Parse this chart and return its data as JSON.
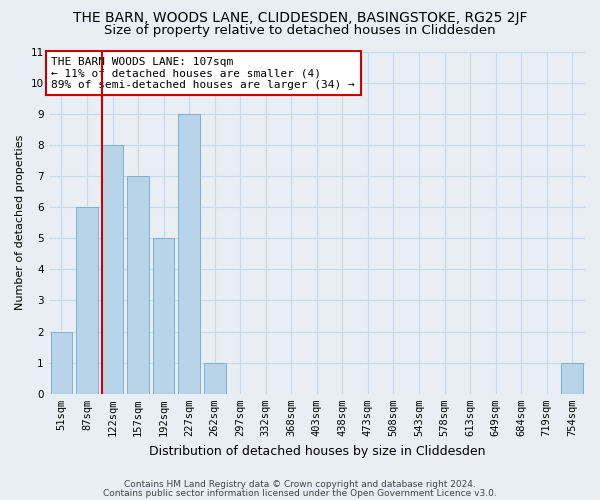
{
  "title": "THE BARN, WOODS LANE, CLIDDESDEN, BASINGSTOKE, RG25 2JF",
  "subtitle": "Size of property relative to detached houses in Cliddesden",
  "xlabel": "Distribution of detached houses by size in Cliddesden",
  "ylabel": "Number of detached properties",
  "bar_labels": [
    "51sqm",
    "87sqm",
    "122sqm",
    "157sqm",
    "192sqm",
    "227sqm",
    "262sqm",
    "297sqm",
    "332sqm",
    "368sqm",
    "403sqm",
    "438sqm",
    "473sqm",
    "508sqm",
    "543sqm",
    "578sqm",
    "613sqm",
    "649sqm",
    "684sqm",
    "719sqm",
    "754sqm"
  ],
  "bar_values": [
    2,
    6,
    8,
    7,
    5,
    9,
    1,
    0,
    0,
    0,
    0,
    0,
    0,
    0,
    0,
    0,
    0,
    0,
    0,
    0,
    1
  ],
  "bar_color": "#b8d4e8",
  "bar_edge_color": "#7aafd4",
  "annotation_line1": "THE BARN WOODS LANE: 107sqm",
  "annotation_line2": "← 11% of detached houses are smaller (4)",
  "annotation_line3": "89% of semi-detached houses are larger (34) →",
  "annotation_box_color": "#ffffff",
  "annotation_box_edge": "#cc0000",
  "subject_line_color": "#cc0000",
  "ylim": [
    0,
    11
  ],
  "yticks": [
    0,
    1,
    2,
    3,
    4,
    5,
    6,
    7,
    8,
    9,
    10,
    11
  ],
  "grid_color": "#c8d8e8",
  "bg_color": "#e8eef4",
  "footer1": "Contains HM Land Registry data © Crown copyright and database right 2024.",
  "footer2": "Contains public sector information licensed under the Open Government Licence v3.0.",
  "title_fontsize": 10,
  "subtitle_fontsize": 9.5,
  "xlabel_fontsize": 9,
  "ylabel_fontsize": 8,
  "tick_fontsize": 7.5,
  "ann_fontsize": 8,
  "footer_fontsize": 6.5
}
